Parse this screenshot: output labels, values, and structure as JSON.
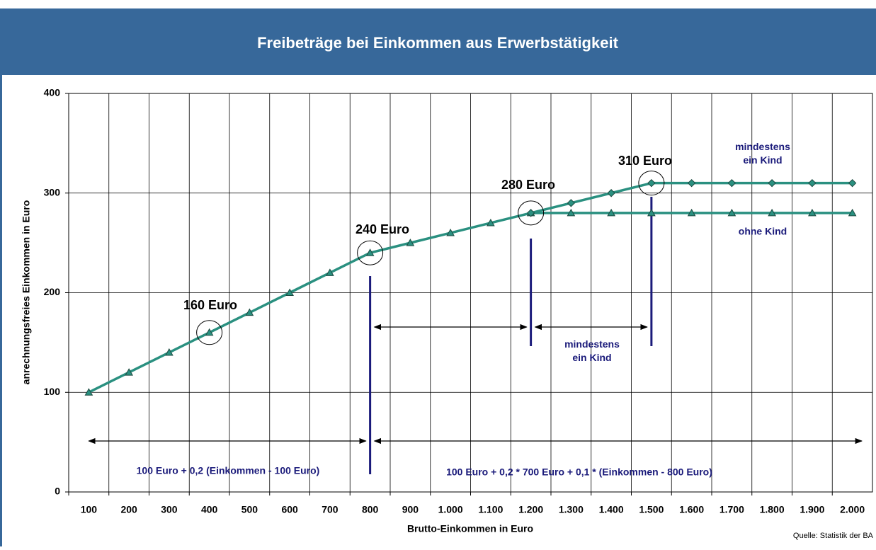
{
  "chart_data": {
    "type": "line",
    "title": "Freibeträge bei Einkommen aus Erwerbstätigkeit",
    "x_label": "Brutto-Einkommen in Euro",
    "y_label": "anrechnungsfreies Einkommen in Euro",
    "source": "Quelle: Statistik der BA",
    "categories": [
      "100",
      "200",
      "300",
      "400",
      "500",
      "600",
      "700",
      "800",
      "900",
      "1.000",
      "1.100",
      "1.200",
      "1.300",
      "1.400",
      "1.500",
      "1.600",
      "1.700",
      "1.800",
      "1.900",
      "2.000"
    ],
    "series": [
      {
        "name": "ohne Kind",
        "color": "#2a9080",
        "marker": "triangle",
        "values": [
          100,
          120,
          140,
          160,
          180,
          200,
          220,
          240,
          250,
          260,
          270,
          280,
          280,
          280,
          280,
          280,
          280,
          280,
          280,
          280
        ]
      },
      {
        "name": "mindestens ein Kind",
        "color": "#2a9080",
        "marker": "diamond",
        "values": [
          null,
          null,
          null,
          null,
          null,
          null,
          null,
          null,
          null,
          null,
          null,
          280,
          290,
          300,
          310,
          310,
          310,
          310,
          310,
          310
        ]
      }
    ],
    "ylim": [
      0,
      400
    ],
    "yticks": [
      0,
      100,
      200,
      300,
      400
    ],
    "grid": true,
    "annotations": [
      "160 Euro",
      "240 Euro",
      "280 Euro",
      "310 Euro",
      "mindestens ein Kind",
      "100 Euro + 0,2 (Einkommen - 100 Euro)",
      "100 Euro + 0,2 * 700 Euro + 0,1 * (Einkommen - 800 Euro)"
    ]
  }
}
